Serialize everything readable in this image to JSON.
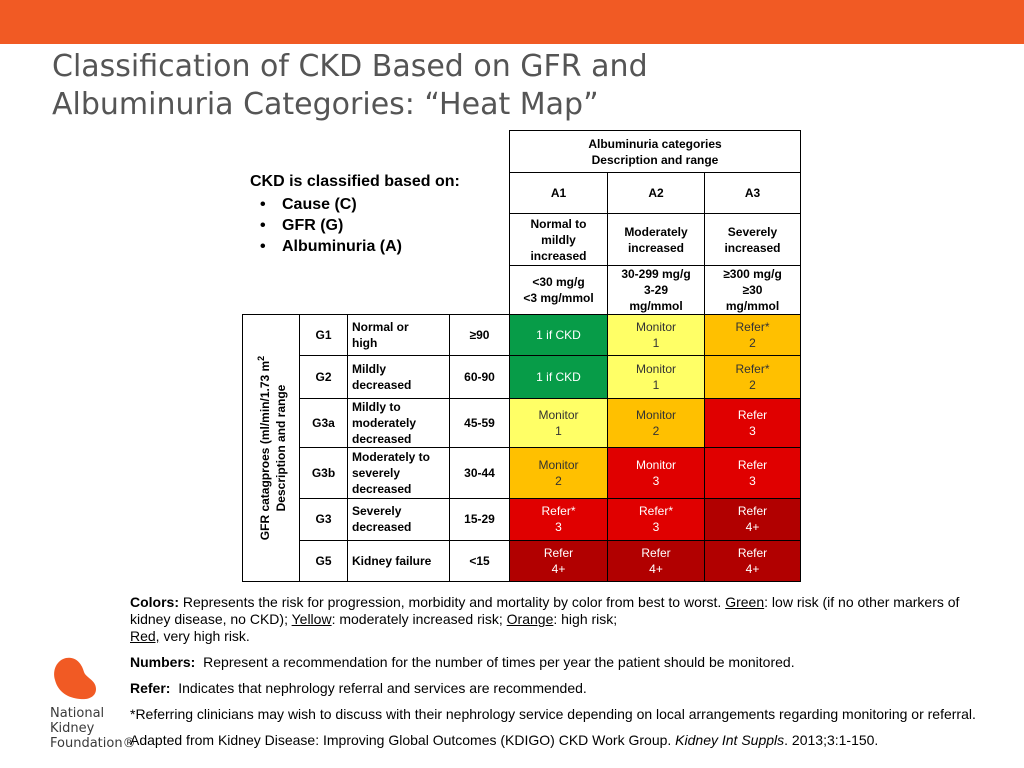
{
  "title": {
    "line1": "Classification of CKD Based on GFR and",
    "line2": "Albuminuria Categories: “Heat Map”"
  },
  "classify": {
    "heading": "CKD is classified based on:",
    "items": [
      "Cause (C)",
      "GFR (G)",
      "Albuminuria (A)"
    ]
  },
  "table": {
    "albuminuria_header": [
      "Albuminuria categories",
      "Description and range"
    ],
    "columns": [
      {
        "code": "A1",
        "desc": [
          "Normal to",
          "mildly",
          "increased"
        ],
        "range": [
          "<30 mg/g",
          "<3 mg/mmol"
        ]
      },
      {
        "code": "A2",
        "desc": [
          "Moderately",
          "increased"
        ],
        "range": [
          "30-299 mg/g",
          "3-29",
          "mg/mmol"
        ]
      },
      {
        "code": "A3",
        "desc": [
          "Severely",
          "increased"
        ],
        "range": [
          "≥300 mg/g",
          "≥30",
          "mg/mmol"
        ]
      }
    ],
    "gfr_header": [
      "GFR catagproes (ml/min/1.73 m",
      "2",
      "Description and range"
    ],
    "rows": [
      {
        "code": "G1",
        "desc": [
          "Normal or",
          "high"
        ],
        "range": "≥90",
        "cells": [
          {
            "t": "1 if CKD",
            "n": "",
            "c": "green"
          },
          {
            "t": "Monitor",
            "n": "1",
            "c": "yellow"
          },
          {
            "t": "Refer*",
            "n": "2",
            "c": "orange"
          }
        ]
      },
      {
        "code": "G2",
        "desc": [
          "Mildly",
          "decreased"
        ],
        "range": "60-90",
        "cells": [
          {
            "t": "1 if CKD",
            "n": "",
            "c": "green"
          },
          {
            "t": "Monitor",
            "n": "1",
            "c": "yellow"
          },
          {
            "t": "Refer*",
            "n": "2",
            "c": "orange"
          }
        ]
      },
      {
        "code": "G3a",
        "desc": [
          "Mildly to",
          "moderately",
          "decreased"
        ],
        "range": "45-59",
        "cells": [
          {
            "t": "Monitor",
            "n": "1",
            "c": "yellow"
          },
          {
            "t": "Monitor",
            "n": "2",
            "c": "orange"
          },
          {
            "t": "Refer",
            "n": "3",
            "c": "red"
          }
        ]
      },
      {
        "code": "G3b",
        "desc": [
          "Moderately to",
          "severely",
          "decreased"
        ],
        "range": "30-44",
        "cells": [
          {
            "t": "Monitor",
            "n": "2",
            "c": "orange"
          },
          {
            "t": "Monitor",
            "n": "3",
            "c": "red"
          },
          {
            "t": "Refer",
            "n": "3",
            "c": "red"
          }
        ]
      },
      {
        "code": "G3",
        "desc": [
          "Severely",
          "decreased"
        ],
        "range": "15-29",
        "cells": [
          {
            "t": "Refer*",
            "n": "3",
            "c": "red"
          },
          {
            "t": "Refer*",
            "n": "3",
            "c": "red"
          },
          {
            "t": "Refer",
            "n": "4+",
            "c": "darkred"
          }
        ]
      },
      {
        "code": "G5",
        "desc": [
          "Kidney failure"
        ],
        "range": "<15",
        "cells": [
          {
            "t": "Refer",
            "n": "4+",
            "c": "darkred"
          },
          {
            "t": "Refer",
            "n": "4+",
            "c": "darkred"
          },
          {
            "t": "Refer",
            "n": "4+",
            "c": "darkred"
          }
        ]
      }
    ]
  },
  "notes": {
    "colors_label": "Colors:",
    "colors_text1": " Represents the risk for progression, morbidity and mortality by color from best to worst. ",
    "green_word": "Green",
    "colors_text2": ": low risk (if no other markers of kidney disease, no CKD); ",
    "yellow_word": "Yellow",
    "colors_text3": ": moderately increased risk; ",
    "orange_word": "Orange",
    "colors_text4": ": high risk;",
    "red_word": "Red,",
    "colors_text5": " very high risk.",
    "numbers_label": "Numbers:",
    "numbers_text": "  Represent a recommendation for the number of times per year the patient should be monitored.",
    "refer_label": "Refer:",
    "refer_text": "  Indicates that nephrology referral and services are recommended.",
    "asterisk_text": "*Referring clinicians may wish to discuss with their nephrology service depending on local arrangements regarding monitoring or referral.",
    "adapted_text1": "Adapted from Kidney Disease: Improving Global Outcomes (KDIGO) CKD Work Group. ",
    "adapted_journal": "Kidney Int Suppls",
    "adapted_text2": ". 2013;3:1-150."
  },
  "logo": {
    "lines": [
      "National",
      "Kidney",
      "Foundation®"
    ],
    "color": "#f15a24"
  },
  "colors": {
    "accent_bar": "#f15a24",
    "green": "#079c48",
    "yellow": "#ffff66",
    "orange": "#ffc000",
    "red": "#e00000",
    "darkred": "#b10000"
  }
}
